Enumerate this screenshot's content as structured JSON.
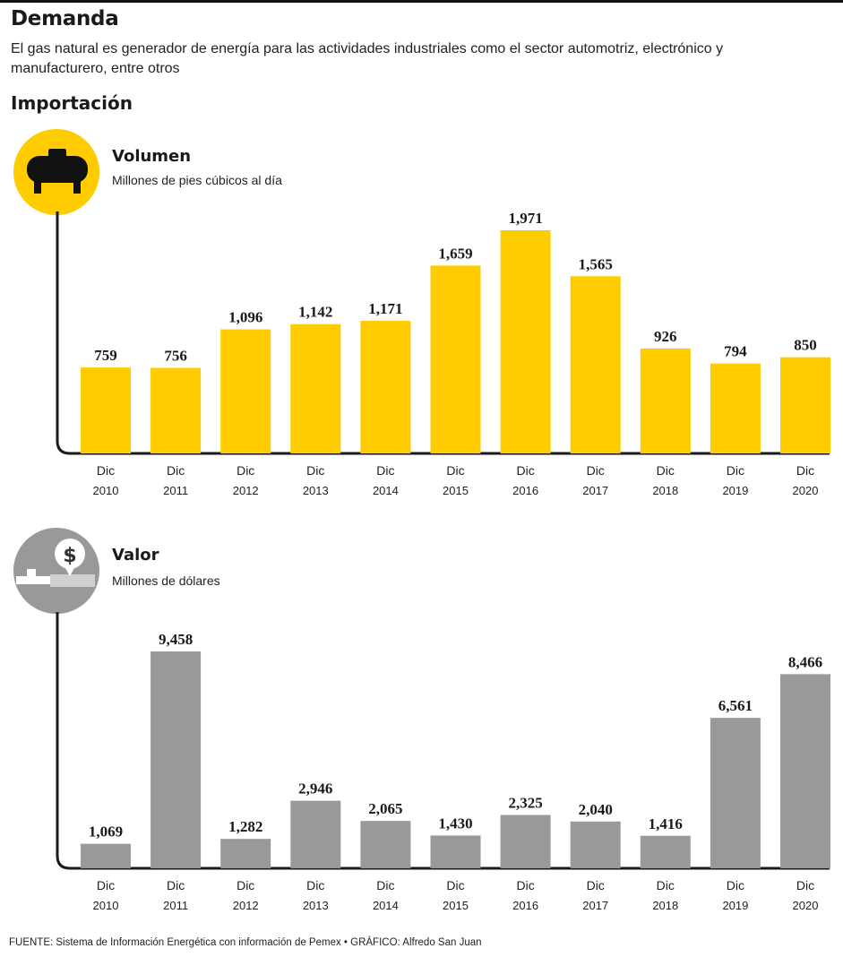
{
  "header": {
    "headline": "Demanda",
    "subtitle": "El gas natural es generador de energía para las actividades industriales como el sector automotriz, electrónico y manufacturero, entre otros",
    "section": "Importación"
  },
  "footer": "FUENTE: Sistema de Información Energética con información de Pemex • GRÁFICO: Alfredo San Juan",
  "colors": {
    "volumen": "#ffcc00",
    "valor": "#999999",
    "axis": "#1a1a1a"
  },
  "icons": {
    "volumen": "gas-tank-icon",
    "valor": "dollar-pipe-icon"
  },
  "chart_data": [
    {
      "type": "bar",
      "title": "Volumen",
      "subtitle": "Millones de pies cúbicos al día",
      "categories": [
        [
          "Dic",
          "2010"
        ],
        [
          "Dic",
          "2011"
        ],
        [
          "Dic",
          "2012"
        ],
        [
          "Dic",
          "2013"
        ],
        [
          "Dic",
          "2014"
        ],
        [
          "Dic",
          "2015"
        ],
        [
          "Dic",
          "2016"
        ],
        [
          "Dic",
          "2017"
        ],
        [
          "Dic",
          "2018"
        ],
        [
          "Dic",
          "2019"
        ],
        [
          "Dic",
          "2020"
        ]
      ],
      "values": [
        759,
        756,
        1096,
        1142,
        1171,
        1659,
        1971,
        1565,
        926,
        794,
        850
      ],
      "labels": [
        "759",
        "756",
        "1,096",
        "1,142",
        "1,171",
        "1,659",
        "1,971",
        "1,565",
        "926",
        "794",
        "850"
      ],
      "ylim": [
        0,
        1971
      ],
      "grid": false
    },
    {
      "type": "bar",
      "title": "Valor",
      "subtitle": "Millones de dólares",
      "categories": [
        [
          "Dic",
          "2010"
        ],
        [
          "Dic",
          "2011"
        ],
        [
          "Dic",
          "2012"
        ],
        [
          "Dic",
          "2013"
        ],
        [
          "Dic",
          "2014"
        ],
        [
          "Dic",
          "2015"
        ],
        [
          "Dic",
          "2016"
        ],
        [
          "Dic",
          "2017"
        ],
        [
          "Dic",
          "2018"
        ],
        [
          "Dic",
          "2019"
        ],
        [
          "Dic",
          "2020"
        ]
      ],
      "values": [
        1069,
        9458,
        1282,
        2946,
        2065,
        1430,
        2325,
        2040,
        1416,
        6561,
        8466
      ],
      "labels": [
        "1,069",
        "9,458",
        "1,282",
        "2,946",
        "2,065",
        "1,430",
        "2,325",
        "2,040",
        "1,416",
        "6,561",
        "8,466"
      ],
      "ylim": [
        0,
        9458
      ],
      "grid": false
    }
  ]
}
